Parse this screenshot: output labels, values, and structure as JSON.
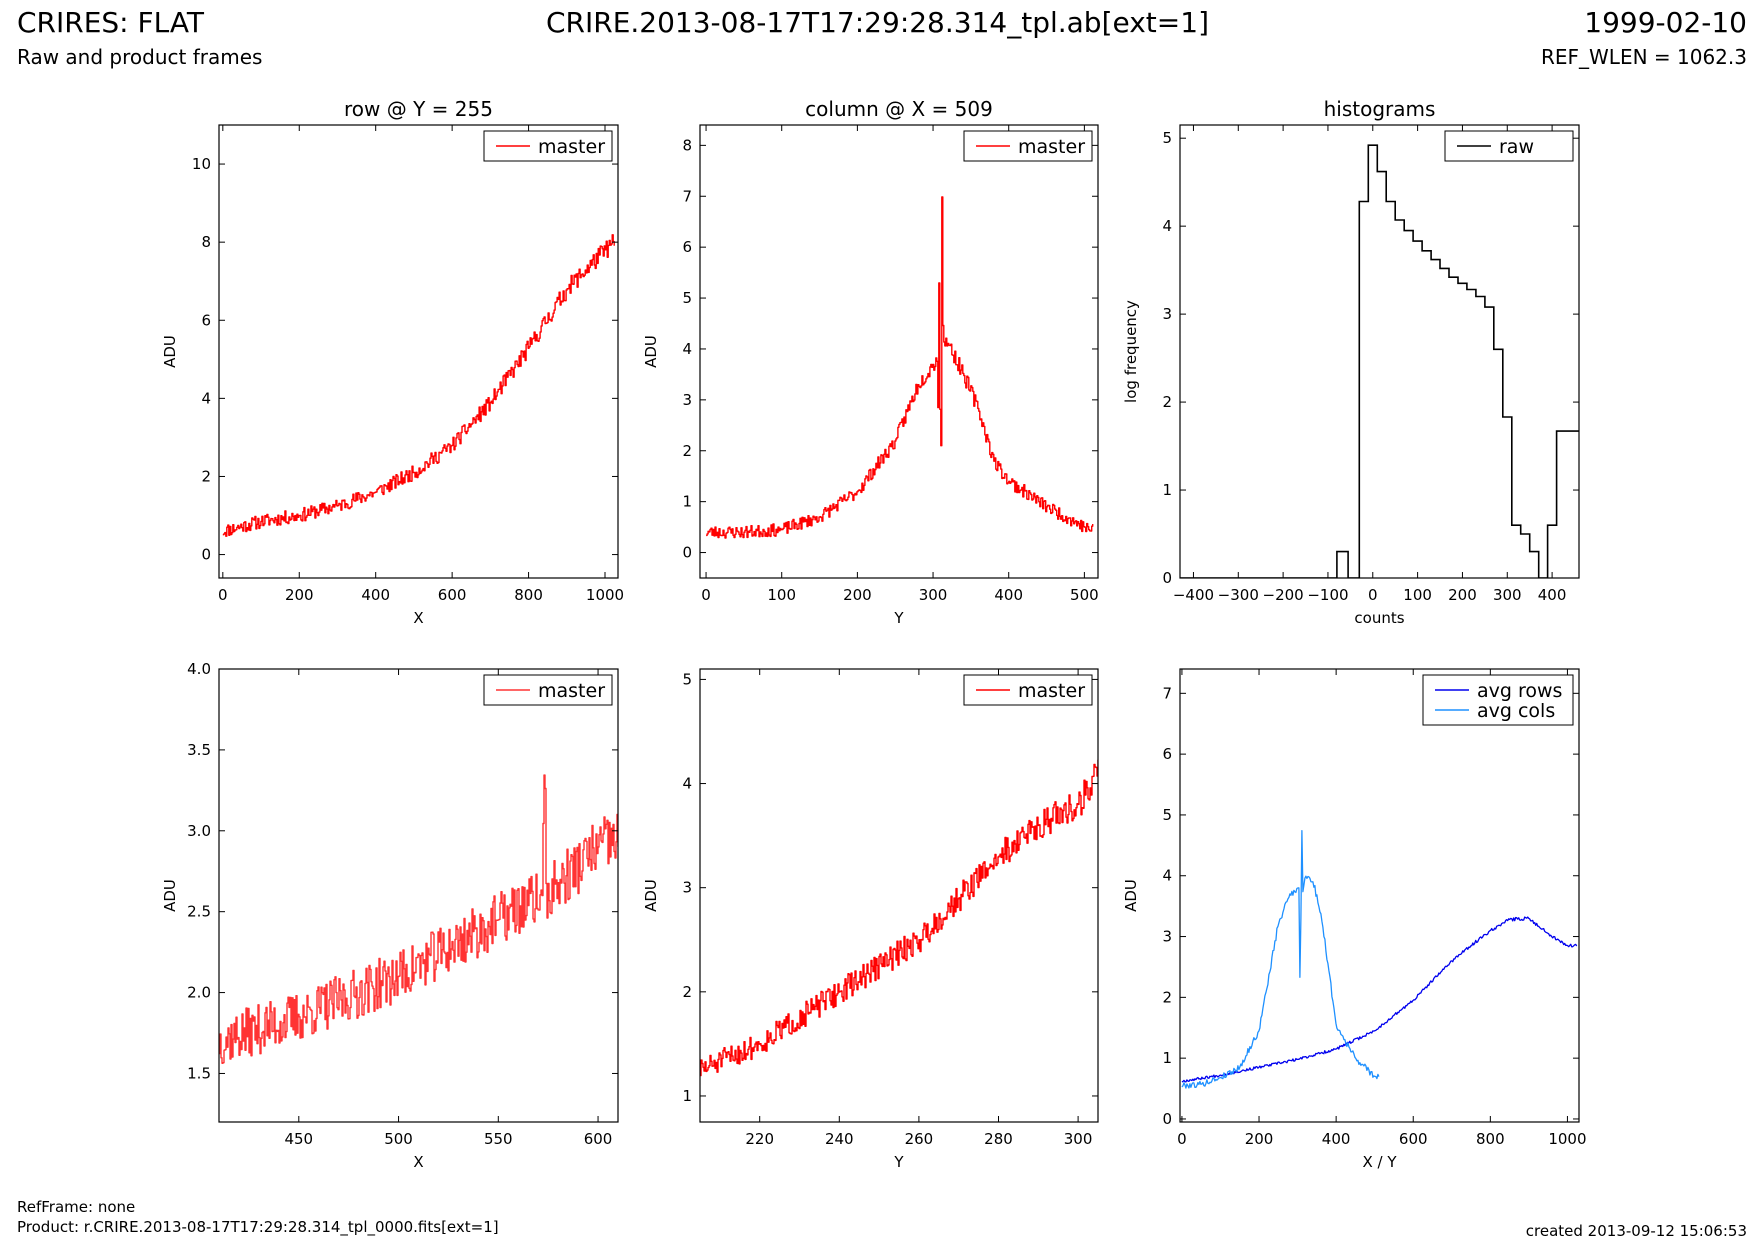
{
  "header": {
    "left_title": "CRIRES: FLAT",
    "left_subtitle": "Raw and product frames",
    "center_title": "CRIRE.2013-08-17T17:29:28.314_tpl.ab[ext=1]",
    "right_title": "1999-02-10",
    "right_subtitle": "REF_WLEN = 1062.3"
  },
  "footer": {
    "ref_frame": "RefFrame: none",
    "product": "Product: r.CRIRE.2013-08-17T17:29:28.314_tpl_0000.fits[ext=1]",
    "created": "created 2013-09-12 15:06:53"
  },
  "colors": {
    "master": "#ff0000",
    "master_zoom": "#ff3333",
    "raw": "#000000",
    "avg_rows": "#0000ee",
    "avg_cols": "#1e90ff"
  },
  "chart_data": [
    {
      "type": "line",
      "title": "row @ Y = 255",
      "xlabel": "X",
      "ylabel": "ADU",
      "xlim": [
        -10,
        1034
      ],
      "ylim": [
        -0.6,
        11
      ],
      "xticks": [
        0,
        200,
        400,
        600,
        800,
        1000
      ],
      "yticks": [
        0,
        2,
        4,
        6,
        8,
        10
      ],
      "legend": {
        "position": "top-right"
      },
      "series": [
        {
          "name": "master",
          "color": "#ff0000",
          "step": true,
          "noise": 0.28,
          "seed": 11,
          "x": [
            0,
            100,
            200,
            300,
            400,
            500,
            600,
            700,
            800,
            900,
            1000,
            1024
          ],
          "values": [
            0.6,
            0.85,
            1.0,
            1.25,
            1.6,
            2.1,
            2.8,
            3.9,
            5.3,
            6.8,
            7.8,
            8.0
          ]
        }
      ]
    },
    {
      "type": "line",
      "title": "column @ X = 509",
      "xlabel": "Y",
      "ylabel": "ADU",
      "xlim": [
        -8,
        518
      ],
      "ylim": [
        -0.5,
        8.4
      ],
      "xticks": [
        0,
        100,
        200,
        300,
        400,
        500
      ],
      "yticks": [
        0,
        1,
        2,
        3,
        4,
        5,
        6,
        7,
        8
      ],
      "legend": {
        "position": "top-right"
      },
      "series": [
        {
          "name": "master",
          "color": "#ff0000",
          "step": true,
          "noise": 0.2,
          "seed": 23,
          "x": [
            0,
            50,
            100,
            150,
            200,
            250,
            280,
            300,
            305,
            306,
            307,
            310,
            312,
            313,
            320,
            340,
            360,
            380,
            400,
            450,
            500,
            511
          ],
          "values": [
            0.4,
            0.4,
            0.45,
            0.7,
            1.2,
            2.2,
            3.3,
            3.7,
            3.8,
            1.0,
            6.5,
            1.0,
            8.4,
            4.2,
            4.1,
            3.5,
            2.8,
            1.8,
            1.4,
            0.9,
            0.5,
            0.45
          ]
        }
      ]
    },
    {
      "type": "line",
      "title": "histograms",
      "xlabel": "counts",
      "ylabel": "log frequency",
      "xlim": [
        -430,
        460
      ],
      "ylim": [
        0,
        5.15
      ],
      "xticks": [
        -400,
        -300,
        -200,
        -100,
        0,
        100,
        200,
        300,
        400
      ],
      "yticks": [
        0,
        1,
        2,
        3,
        4,
        5
      ],
      "legend": {
        "position": "top-right"
      },
      "series": [
        {
          "name": "raw",
          "color": "#000000",
          "histogram": true,
          "edges": [
            -430,
            -80,
            -55,
            -30,
            -10,
            10,
            30,
            50,
            70,
            90,
            110,
            130,
            150,
            170,
            190,
            210,
            230,
            250,
            270,
            290,
            310,
            330,
            350,
            370,
            390,
            410,
            430,
            460
          ],
          "values": [
            0,
            0.3,
            0,
            4.28,
            4.92,
            4.62,
            4.28,
            4.07,
            3.95,
            3.83,
            3.72,
            3.62,
            3.52,
            3.42,
            3.35,
            3.28,
            3.2,
            3.08,
            2.6,
            1.83,
            0.6,
            0.5,
            0.3,
            0,
            0.6,
            1.67,
            1.67
          ]
        }
      ]
    },
    {
      "type": "line",
      "xlabel": "X",
      "ylabel": "ADU",
      "xlim": [
        410,
        610
      ],
      "ylim": [
        1.2,
        4.0
      ],
      "xticks": [
        450,
        500,
        550,
        600
      ],
      "yticks": [
        1.5,
        2.0,
        2.5,
        3.0,
        3.5,
        4.0
      ],
      "legend": {
        "position": "top-right"
      },
      "series": [
        {
          "name": "master",
          "color": "#ff3333",
          "step": true,
          "noise": 0.2,
          "seed": 37,
          "x": [
            410,
            450,
            500,
            550,
            572,
            573,
            574,
            600,
            610
          ],
          "values": [
            1.7,
            1.85,
            2.1,
            2.45,
            2.6,
            3.42,
            2.6,
            2.9,
            2.95
          ]
        }
      ]
    },
    {
      "type": "line",
      "xlabel": "Y",
      "ylabel": "ADU",
      "xlim": [
        205,
        305
      ],
      "ylim": [
        0.75,
        5.1
      ],
      "xticks": [
        220,
        240,
        260,
        280,
        300
      ],
      "yticks": [
        1,
        2,
        3,
        4,
        5
      ],
      "legend": {
        "position": "top-right"
      },
      "series": [
        {
          "name": "master",
          "color": "#ff0000",
          "step": true,
          "noise": 0.16,
          "seed": 51,
          "x": [
            205,
            220,
            240,
            260,
            270,
            280,
            290,
            300,
            305
          ],
          "values": [
            1.25,
            1.5,
            2.0,
            2.5,
            2.9,
            3.3,
            3.6,
            3.8,
            4.1
          ]
        }
      ]
    },
    {
      "type": "line",
      "xlabel": "X / Y",
      "ylabel": "ADU",
      "xlim": [
        -5,
        1030
      ],
      "ylim": [
        -0.05,
        7.4
      ],
      "xticks": [
        0,
        200,
        400,
        600,
        800,
        1000
      ],
      "yticks": [
        0,
        1,
        2,
        3,
        4,
        5,
        6,
        7
      ],
      "legend": {
        "position": "top-right"
      },
      "series": [
        {
          "name": "avg rows",
          "color": "#0000ee",
          "noise": 0.035,
          "seed": 67,
          "x": [
            0,
            100,
            200,
            300,
            400,
            500,
            600,
            700,
            800,
            850,
            900,
            950,
            1000,
            1024
          ],
          "values": [
            0.62,
            0.72,
            0.85,
            0.98,
            1.15,
            1.45,
            1.95,
            2.6,
            3.1,
            3.28,
            3.3,
            3.05,
            2.85,
            2.85
          ]
        },
        {
          "name": "avg cols",
          "color": "#1e90ff",
          "noise": 0.08,
          "seed": 79,
          "x": [
            0,
            50,
            100,
            150,
            200,
            250,
            280,
            300,
            305,
            306,
            307,
            310,
            312,
            313,
            320,
            340,
            360,
            380,
            400,
            450,
            500,
            511
          ],
          "values": [
            0.55,
            0.57,
            0.68,
            0.85,
            1.45,
            3.2,
            3.7,
            3.8,
            3.8,
            2.2,
            3.8,
            2.9,
            5.8,
            3.7,
            4.0,
            3.9,
            3.4,
            2.5,
            1.55,
            1.0,
            0.7,
            0.7
          ]
        }
      ]
    }
  ]
}
